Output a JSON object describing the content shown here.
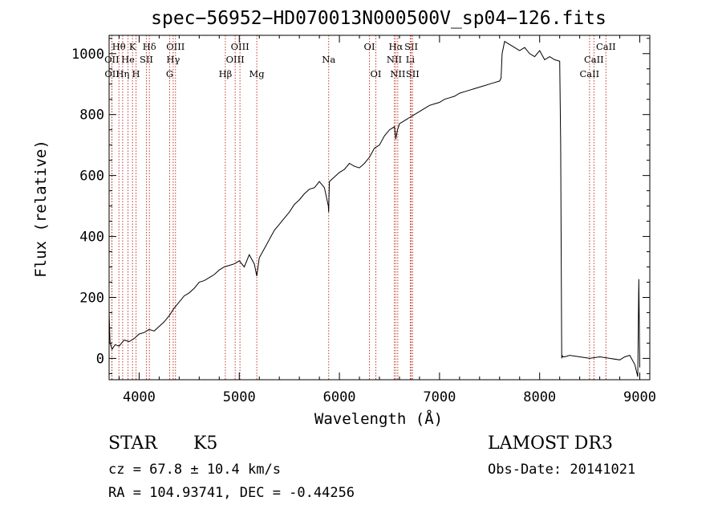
{
  "chart_data": {
    "type": "line",
    "title": "spec−56952−HD070013N000500V_sp04−126.fits",
    "xlabel": "Wavelength (Å)",
    "ylabel": "Flux (relative)",
    "xlim": [
      3700,
      9100
    ],
    "ylim": [
      -70,
      1060
    ],
    "xticks": [
      4000,
      5000,
      6000,
      7000,
      8000,
      9000
    ],
    "yticks": [
      0,
      200,
      400,
      600,
      800,
      1000
    ],
    "grid": false,
    "series": [
      {
        "name": "flux",
        "x": [
          3700,
          3710,
          3730,
          3760,
          3800,
          3850,
          3900,
          3950,
          4000,
          4050,
          4100,
          4150,
          4200,
          4250,
          4300,
          4350,
          4400,
          4450,
          4500,
          4550,
          4600,
          4650,
          4700,
          4750,
          4800,
          4850,
          4900,
          4950,
          5000,
          5050,
          5100,
          5150,
          5175,
          5200,
          5250,
          5300,
          5350,
          5400,
          5450,
          5500,
          5550,
          5600,
          5650,
          5700,
          5750,
          5800,
          5850,
          5890,
          5893,
          5896,
          5900,
          5950,
          6000,
          6050,
          6100,
          6150,
          6200,
          6250,
          6300,
          6350,
          6400,
          6450,
          6500,
          6550,
          6563,
          6580,
          6600,
          6650,
          6700,
          6750,
          6800,
          6850,
          6900,
          6950,
          7000,
          7050,
          7100,
          7150,
          7200,
          7250,
          7300,
          7350,
          7400,
          7450,
          7500,
          7550,
          7600,
          7615,
          7625,
          7650,
          7700,
          7750,
          7800,
          7850,
          7900,
          7950,
          8000,
          8050,
          8100,
          8150,
          8200,
          8210,
          8220,
          8225,
          8230,
          8250,
          8300,
          8400,
          8500,
          8600,
          8700,
          8800,
          8850,
          8900,
          8950,
          8980,
          8990,
          9000
        ],
        "y": [
          150,
          50,
          30,
          45,
          40,
          60,
          55,
          65,
          80,
          85,
          95,
          90,
          105,
          120,
          140,
          165,
          185,
          205,
          215,
          230,
          250,
          255,
          265,
          275,
          290,
          300,
          305,
          310,
          320,
          300,
          340,
          310,
          270,
          330,
          360,
          390,
          420,
          440,
          460,
          480,
          505,
          520,
          540,
          555,
          560,
          580,
          560,
          500,
          480,
          530,
          580,
          595,
          610,
          620,
          640,
          630,
          625,
          640,
          660,
          690,
          700,
          730,
          750,
          760,
          720,
          750,
          770,
          780,
          790,
          800,
          810,
          820,
          830,
          835,
          840,
          850,
          855,
          860,
          870,
          875,
          880,
          885,
          890,
          895,
          900,
          905,
          910,
          920,
          1000,
          1040,
          1030,
          1020,
          1010,
          1020,
          1000,
          990,
          1010,
          980,
          990,
          980,
          975,
          700,
          0,
          10,
          5,
          5,
          10,
          5,
          0,
          5,
          0,
          -5,
          5,
          10,
          -20,
          -60,
          260,
          -30
        ]
      }
    ],
    "line_markers": [
      {
        "label": "Hθ",
        "x": 3798,
        "row": 1
      },
      {
        "label": "OII",
        "x": 3727,
        "row": 2
      },
      {
        "label": "OII",
        "x": 3729,
        "row": 3
      },
      {
        "label": "K",
        "x": 3934,
        "row": 1
      },
      {
        "label": "He",
        "x": 3889,
        "row": 2
      },
      {
        "label": "Hη",
        "x": 3835,
        "row": 3
      },
      {
        "label": "H",
        "x": 3969,
        "row": 3
      },
      {
        "label": "SII",
        "x": 4072,
        "row": 2
      },
      {
        "label": "Hδ",
        "x": 4102,
        "row": 1
      },
      {
        "label": "OIII",
        "x": 4363,
        "row": 1
      },
      {
        "label": "Hγ",
        "x": 4340,
        "row": 2
      },
      {
        "label": "G",
        "x": 4305,
        "row": 3
      },
      {
        "label": "Hβ",
        "x": 4861,
        "row": 3
      },
      {
        "label": "OIII",
        "x": 5007,
        "row": 1
      },
      {
        "label": "OIII",
        "x": 4959,
        "row": 2
      },
      {
        "label": "Mg",
        "x": 5175,
        "row": 3
      },
      {
        "label": "Na",
        "x": 5893,
        "row": 2
      },
      {
        "label": "OI",
        "x": 6300,
        "row": 1
      },
      {
        "label": "OI",
        "x": 6364,
        "row": 3
      },
      {
        "label": "Hα",
        "x": 6563,
        "row": 1
      },
      {
        "label": "NII",
        "x": 6548,
        "row": 2
      },
      {
        "label": "NII",
        "x": 6583,
        "row": 3
      },
      {
        "label": "SII",
        "x": 6717,
        "row": 1
      },
      {
        "label": "Li",
        "x": 6708,
        "row": 2
      },
      {
        "label": "SII",
        "x": 6731,
        "row": 3
      },
      {
        "label": "CaII",
        "x": 8662,
        "row": 1
      },
      {
        "label": "CaII",
        "x": 8542,
        "row": 2
      },
      {
        "label": "CaII",
        "x": 8498,
        "row": 3
      }
    ]
  },
  "info": {
    "object_class": "STAR",
    "subclass": "K5",
    "survey": "LAMOST DR3",
    "cz": "cz = 67.8 ± 10.4 km/s",
    "obs_date": "Obs-Date: 20141021",
    "coords": "RA = 104.93741, DEC =  -0.44256"
  }
}
